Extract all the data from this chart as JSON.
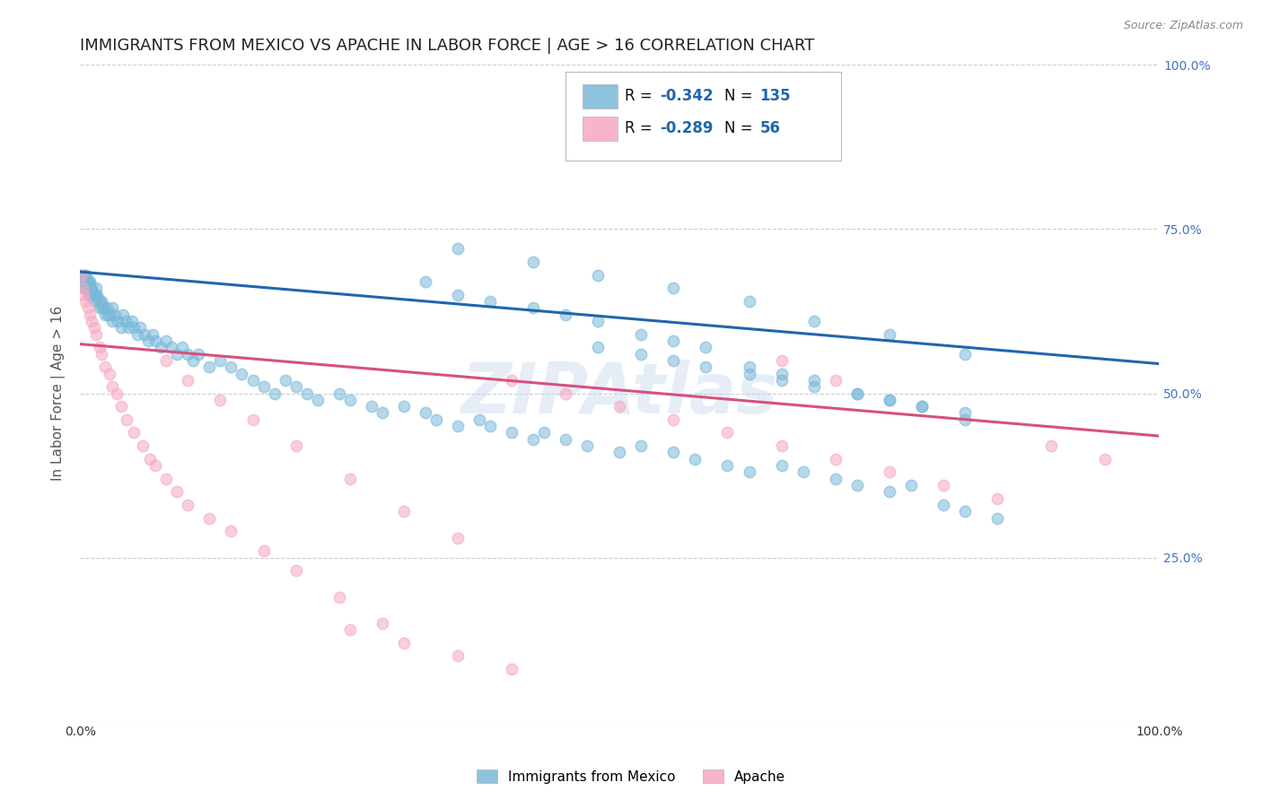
{
  "title": "IMMIGRANTS FROM MEXICO VS APACHE IN LABOR FORCE | AGE > 16 CORRELATION CHART",
  "source": "Source: ZipAtlas.com",
  "ylabel": "In Labor Force | Age > 16",
  "watermark": "ZIPAtlas",
  "blue_R": -0.342,
  "blue_N": 135,
  "pink_R": -0.289,
  "pink_N": 56,
  "blue_color": "#7ab8d9",
  "pink_color": "#f7a8c0",
  "blue_line_color": "#2166ac",
  "pink_line_color": "#d6517d",
  "blue_scatter_x": [
    0.001,
    0.002,
    0.003,
    0.003,
    0.004,
    0.004,
    0.005,
    0.005,
    0.006,
    0.006,
    0.007,
    0.007,
    0.008,
    0.008,
    0.009,
    0.009,
    0.01,
    0.01,
    0.011,
    0.012,
    0.013,
    0.014,
    0.015,
    0.015,
    0.016,
    0.017,
    0.018,
    0.019,
    0.02,
    0.021,
    0.022,
    0.023,
    0.025,
    0.026,
    0.028,
    0.03,
    0.03,
    0.032,
    0.035,
    0.038,
    0.04,
    0.042,
    0.045,
    0.048,
    0.05,
    0.053,
    0.056,
    0.06,
    0.063,
    0.067,
    0.07,
    0.075,
    0.08,
    0.085,
    0.09,
    0.095,
    0.1,
    0.105,
    0.11,
    0.12,
    0.13,
    0.14,
    0.15,
    0.16,
    0.17,
    0.18,
    0.19,
    0.2,
    0.21,
    0.22,
    0.24,
    0.25,
    0.27,
    0.28,
    0.3,
    0.32,
    0.33,
    0.35,
    0.37,
    0.38,
    0.4,
    0.42,
    0.43,
    0.45,
    0.47,
    0.5,
    0.52,
    0.55,
    0.57,
    0.6,
    0.62,
    0.65,
    0.67,
    0.7,
    0.72,
    0.75,
    0.77,
    0.8,
    0.82,
    0.85,
    0.32,
    0.35,
    0.38,
    0.42,
    0.45,
    0.48,
    0.52,
    0.55,
    0.58,
    0.62,
    0.65,
    0.68,
    0.72,
    0.75,
    0.78,
    0.82,
    0.35,
    0.42,
    0.48,
    0.55,
    0.62,
    0.68,
    0.75,
    0.82,
    0.48,
    0.52,
    0.55,
    0.58,
    0.62,
    0.65,
    0.68,
    0.72,
    0.75,
    0.78,
    0.82
  ],
  "blue_scatter_y": [
    0.68,
    0.67,
    0.68,
    0.66,
    0.67,
    0.68,
    0.67,
    0.66,
    0.67,
    0.68,
    0.66,
    0.67,
    0.67,
    0.65,
    0.66,
    0.67,
    0.66,
    0.65,
    0.66,
    0.65,
    0.65,
    0.64,
    0.65,
    0.66,
    0.65,
    0.64,
    0.63,
    0.64,
    0.64,
    0.63,
    0.63,
    0.62,
    0.63,
    0.62,
    0.62,
    0.63,
    0.61,
    0.62,
    0.61,
    0.6,
    0.62,
    0.61,
    0.6,
    0.61,
    0.6,
    0.59,
    0.6,
    0.59,
    0.58,
    0.59,
    0.58,
    0.57,
    0.58,
    0.57,
    0.56,
    0.57,
    0.56,
    0.55,
    0.56,
    0.54,
    0.55,
    0.54,
    0.53,
    0.52,
    0.51,
    0.5,
    0.52,
    0.51,
    0.5,
    0.49,
    0.5,
    0.49,
    0.48,
    0.47,
    0.48,
    0.47,
    0.46,
    0.45,
    0.46,
    0.45,
    0.44,
    0.43,
    0.44,
    0.43,
    0.42,
    0.41,
    0.42,
    0.41,
    0.4,
    0.39,
    0.38,
    0.39,
    0.38,
    0.37,
    0.36,
    0.35,
    0.36,
    0.33,
    0.32,
    0.31,
    0.67,
    0.65,
    0.64,
    0.63,
    0.62,
    0.61,
    0.59,
    0.58,
    0.57,
    0.54,
    0.53,
    0.52,
    0.5,
    0.49,
    0.48,
    0.46,
    0.72,
    0.7,
    0.68,
    0.66,
    0.64,
    0.61,
    0.59,
    0.56,
    0.57,
    0.56,
    0.55,
    0.54,
    0.53,
    0.52,
    0.51,
    0.5,
    0.49,
    0.48,
    0.47
  ],
  "pink_scatter_x": [
    0.001,
    0.002,
    0.003,
    0.005,
    0.007,
    0.009,
    0.011,
    0.013,
    0.015,
    0.018,
    0.02,
    0.023,
    0.027,
    0.03,
    0.034,
    0.038,
    0.043,
    0.05,
    0.058,
    0.065,
    0.07,
    0.08,
    0.09,
    0.1,
    0.12,
    0.14,
    0.17,
    0.2,
    0.24,
    0.28,
    0.08,
    0.1,
    0.13,
    0.16,
    0.2,
    0.25,
    0.3,
    0.35,
    0.4,
    0.45,
    0.5,
    0.55,
    0.6,
    0.65,
    0.7,
    0.75,
    0.8,
    0.85,
    0.9,
    0.95,
    0.25,
    0.3,
    0.35,
    0.4,
    0.65,
    0.7
  ],
  "pink_scatter_y": [
    0.68,
    0.66,
    0.65,
    0.64,
    0.63,
    0.62,
    0.61,
    0.6,
    0.59,
    0.57,
    0.56,
    0.54,
    0.53,
    0.51,
    0.5,
    0.48,
    0.46,
    0.44,
    0.42,
    0.4,
    0.39,
    0.37,
    0.35,
    0.33,
    0.31,
    0.29,
    0.26,
    0.23,
    0.19,
    0.15,
    0.55,
    0.52,
    0.49,
    0.46,
    0.42,
    0.37,
    0.32,
    0.28,
    0.52,
    0.5,
    0.48,
    0.46,
    0.44,
    0.42,
    0.4,
    0.38,
    0.36,
    0.34,
    0.42,
    0.4,
    0.14,
    0.12,
    0.1,
    0.08,
    0.55,
    0.52
  ],
  "blue_trendline_x": [
    0.0,
    1.0
  ],
  "blue_trendline_y": [
    0.685,
    0.545
  ],
  "pink_trendline_x": [
    0.0,
    1.0
  ],
  "pink_trendline_y": [
    0.575,
    0.435
  ],
  "xlim": [
    0.0,
    1.0
  ],
  "ylim": [
    0.0,
    1.0
  ],
  "background_color": "#ffffff",
  "grid_color": "#cccccc",
  "title_fontsize": 13,
  "axis_label_fontsize": 11,
  "tick_fontsize": 10,
  "scatter_size": 80,
  "scatter_alpha": 0.55,
  "scatter_lw": 1.2
}
